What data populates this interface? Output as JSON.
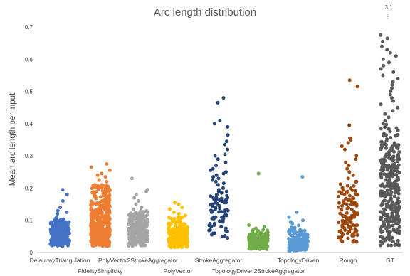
{
  "chart_data": {
    "type": "scatter",
    "title": "Arc length distribution",
    "xlabel": "",
    "ylabel": "Mean arc length per input",
    "ylim": [
      0,
      0.7
    ],
    "yticks": [
      "0",
      "0.1",
      "0.2",
      "0.3",
      "0.4",
      "0.5",
      "0.6",
      "0.7"
    ],
    "grid": false,
    "corner_annotation": {
      "value": "3.1",
      "marker": "⋮"
    },
    "categories": [
      "DelaunayTriangulation",
      "FidelitySimplicity",
      "PolyVector2StrokeAggregator",
      "PolyVector",
      "StrokeAggregator",
      "TopologyDriven2StrokeAggregator",
      "TopologyDriven",
      "Rough",
      "GT"
    ],
    "series": [
      {
        "category": "DelaunayTriangulation",
        "color": "#4472C4",
        "points": [
          0.195,
          0.18,
          0.16,
          0.14,
          0.13,
          0.125,
          0.12,
          0.11
        ],
        "bulk": {
          "n": 220,
          "min": 0.02,
          "max": 0.105,
          "center": 0.06
        }
      },
      {
        "category": "FidelitySimplicity",
        "color": "#ED7D31",
        "points": [
          0.275,
          0.265,
          0.255,
          0.245,
          0.24,
          0.235,
          0.225,
          0.22,
          0.21,
          0.2
        ],
        "bulk": {
          "n": 420,
          "min": 0.02,
          "max": 0.21,
          "center": 0.09
        }
      },
      {
        "category": "PolyVector2StrokeAggregator",
        "color": "#A5A5A5",
        "points": [
          0.23,
          0.195,
          0.19,
          0.18,
          0.17,
          0.16,
          0.15,
          0.14
        ],
        "bulk": {
          "n": 220,
          "min": 0.02,
          "max": 0.135,
          "center": 0.065
        }
      },
      {
        "category": "PolyVector",
        "color": "#FFC000",
        "points": [
          0.155,
          0.15,
          0.14,
          0.135,
          0.125,
          0.12,
          0.115
        ],
        "bulk": {
          "n": 240,
          "min": 0.015,
          "max": 0.11,
          "center": 0.05
        }
      },
      {
        "category": "StrokeAggregator",
        "color": "#264478",
        "points": [
          0.48,
          0.465,
          0.41,
          0.4,
          0.39,
          0.365,
          0.345,
          0.335,
          0.32,
          0.305,
          0.3,
          0.29,
          0.28,
          0.27,
          0.26,
          0.255,
          0.25,
          0.245,
          0.24,
          0.235,
          0.23,
          0.225,
          0.22,
          0.215,
          0.21,
          0.2,
          0.195,
          0.19,
          0.185,
          0.18,
          0.175,
          0.17,
          0.165,
          0.16,
          0.155,
          0.15,
          0.145,
          0.14,
          0.135,
          0.13,
          0.125,
          0.12,
          0.115,
          0.11,
          0.105,
          0.1,
          0.095,
          0.09,
          0.085,
          0.08,
          0.075,
          0.07,
          0.065,
          0.06,
          0.055,
          0.05,
          0.045
        ],
        "bulk": {
          "n": 40,
          "min": 0.05,
          "max": 0.2,
          "center": 0.12
        }
      },
      {
        "category": "TopologyDriven2StrokeAggregator",
        "color": "#70AD47",
        "points": [
          0.245,
          0.085,
          0.08,
          0.075,
          0.07
        ],
        "bulk": {
          "n": 200,
          "min": 0.01,
          "max": 0.07,
          "center": 0.035
        }
      },
      {
        "category": "TopologyDriven",
        "color": "#5B9BD5",
        "points": [
          0.235,
          0.125,
          0.11,
          0.1,
          0.095,
          0.09
        ],
        "bulk": {
          "n": 200,
          "min": 0.005,
          "max": 0.085,
          "center": 0.03
        }
      },
      {
        "category": "Rough",
        "color": "#9E480E",
        "points": [
          0.535,
          0.515,
          0.395,
          0.355,
          0.35,
          0.34,
          0.33,
          0.32,
          0.3,
          0.29,
          0.28,
          0.27,
          0.26,
          0.25,
          0.24,
          0.23,
          0.22
        ],
        "bulk": {
          "n": 110,
          "min": 0.03,
          "max": 0.22,
          "center": 0.11
        }
      },
      {
        "category": "GT",
        "color": "#595959",
        "points": [
          0.675,
          0.665,
          0.655,
          0.64,
          0.63,
          0.62,
          0.61,
          0.6,
          0.59,
          0.58,
          0.57,
          0.56,
          0.55,
          0.54,
          0.53,
          0.52,
          0.51,
          0.5,
          0.49,
          0.48,
          0.47,
          0.46,
          0.45,
          0.44,
          0.43,
          0.42,
          0.41,
          0.4
        ],
        "bulk": {
          "n": 330,
          "min": 0.02,
          "max": 0.4,
          "center": 0.18
        }
      }
    ]
  }
}
